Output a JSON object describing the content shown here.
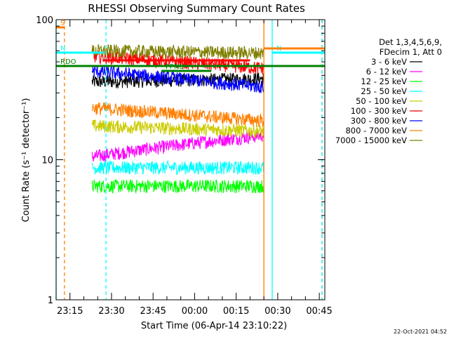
{
  "chart_data": {
    "type": "line",
    "title": "RHESSI Observing Summary Count Rates",
    "xlabel": "Start Time (06-Apr-14 23:10:22)",
    "ylabel": "Count Rate (s⁻¹ detector⁻¹)",
    "y_scale": "log",
    "ylim": [
      1,
      100
    ],
    "x_range": [
      "23:10",
      "00:47"
    ],
    "x_ticks": [
      "23:15",
      "23:30",
      "23:45",
      "00:00",
      "00:15",
      "00:30",
      "00:45"
    ],
    "y_ticks": [
      "1",
      "10",
      "100"
    ],
    "legend_header": [
      "Det 1,3,4,5,6,9,",
      "FDecim 1, Att 0"
    ],
    "legend_position": "right",
    "stamp": "22-Oct-2021 04:52",
    "series": [
      {
        "name": "3 - 6 keV",
        "color": "#000000",
        "level_start": 36,
        "level_end": 38
      },
      {
        "name": "6 - 12 keV",
        "color": "#ff00ff",
        "level_start": 10.5,
        "level_end": 15
      },
      {
        "name": "12 - 25 keV",
        "color": "#00ff00",
        "level_start": 6.5,
        "level_end": 6.5
      },
      {
        "name": "25 - 50 keV",
        "color": "#00ffff",
        "level_start": 8.8,
        "level_end": 8.8
      },
      {
        "name": "50 - 100 keV",
        "color": "#cccc00",
        "level_start": 17.5,
        "level_end": 16
      },
      {
        "name": "100 - 300 keV",
        "color": "#ff0000",
        "level_start": 55,
        "level_end": 45
      },
      {
        "name": "300 - 800 keV",
        "color": "#0000ff",
        "level_start": 43,
        "level_end": 33
      },
      {
        "name": "800 - 7000 keV",
        "color": "#ff7f00",
        "level_start": 23.5,
        "level_end": 19
      },
      {
        "name": "7000 - 15000 keV",
        "color": "#7f7f00",
        "level_start": 60,
        "level_end": 58
      }
    ],
    "data_start": "23:23",
    "data_end": "00:25",
    "flags": [
      {
        "label": "S",
        "color": "#ff7f00",
        "start": "23:10",
        "end": "23:13"
      },
      {
        "label": "N",
        "color": "#00ffff",
        "start": "23:10",
        "end": "23:27"
      },
      {
        "label": "N",
        "color": "#00ffff",
        "start": "00:28",
        "end": "00:47"
      },
      {
        "label": "F",
        "color": "#ff0000",
        "start": "23:27",
        "end": "00:20"
      },
      {
        "label": "RDO",
        "color": "#008000",
        "start": "23:10",
        "end": "00:47"
      },
      {
        "label": "FPNS",
        "color": "#008000",
        "start": "23:48",
        "end": "00:06"
      },
      {
        "label": "",
        "color": "#ff7f00",
        "start": "00:25",
        "end": "00:47"
      }
    ],
    "vlines": [
      {
        "time": "23:10",
        "color": "#00ffff",
        "style": "solid"
      },
      {
        "time": "23:13",
        "color": "#ff7f00",
        "style": "dashed"
      },
      {
        "time": "23:28",
        "color": "#00ffff",
        "style": "dashed"
      },
      {
        "time": "00:25",
        "color": "#ff7f00",
        "style": "solid"
      },
      {
        "time": "00:28",
        "color": "#00ffff",
        "style": "solid"
      },
      {
        "time": "00:46",
        "color": "#ff7f00",
        "style": "dashed"
      },
      {
        "time": "00:46",
        "color": "#00ffff",
        "style": "dashed"
      }
    ]
  }
}
